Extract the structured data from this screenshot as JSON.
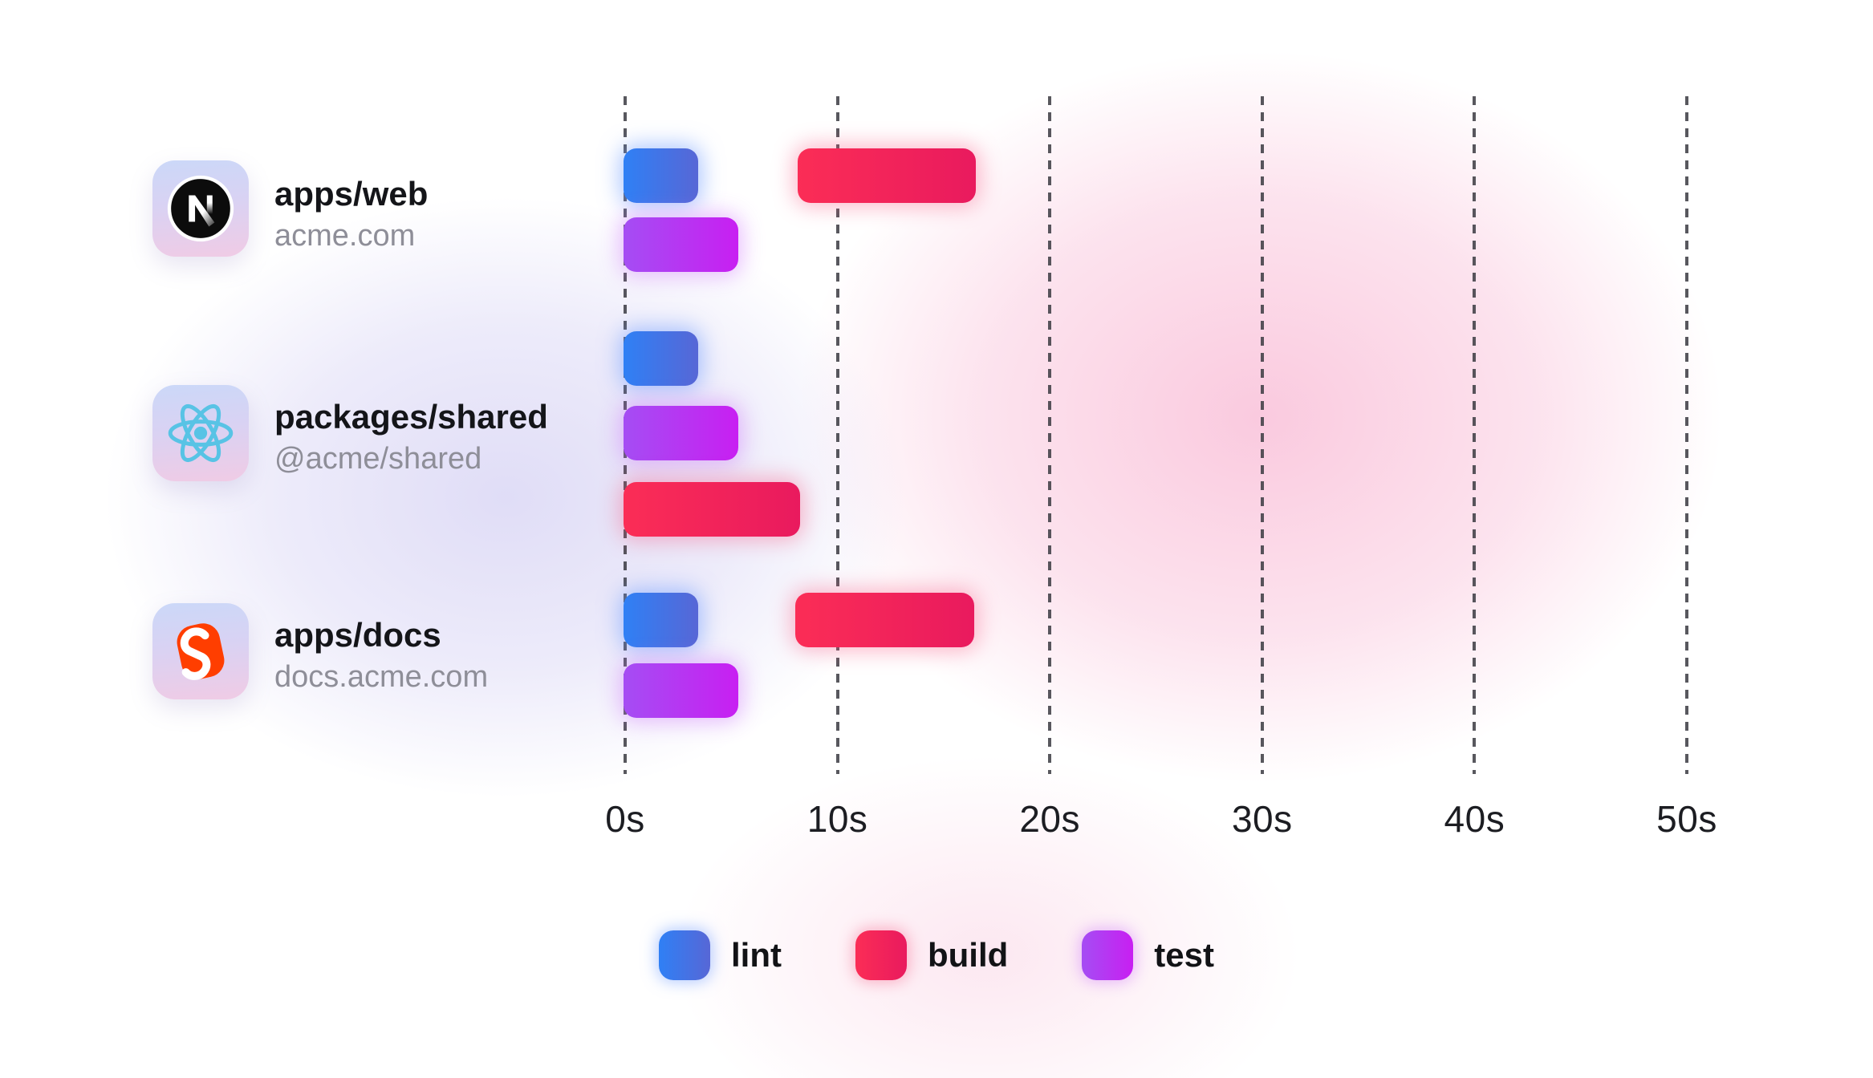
{
  "chart_data": {
    "type": "gantt",
    "unit": "seconds",
    "axis": {
      "ticks": [
        "0s",
        "10s",
        "20s",
        "30s",
        "40s",
        "50s"
      ],
      "values": [
        0,
        10,
        20,
        30,
        40,
        50
      ],
      "min": 0,
      "max": 50,
      "gridline_style": "dashed-vertical"
    },
    "rows": [
      {
        "label": "apps/web",
        "sublabel": "acme.com",
        "icon": "nextjs-logo",
        "tasks": [
          {
            "name": "lint",
            "start": 0,
            "end": 3.5,
            "line": 0
          },
          {
            "name": "build",
            "start": 8.2,
            "end": 16.6,
            "line": 0
          },
          {
            "name": "test",
            "start": 0,
            "end": 5.4,
            "line": 1
          }
        ]
      },
      {
        "label": "packages/shared",
        "sublabel": "@acme/shared",
        "icon": "react-logo",
        "tasks": [
          {
            "name": "lint",
            "start": 0,
            "end": 3.5,
            "line": 0
          },
          {
            "name": "test",
            "start": 0,
            "end": 5.4,
            "line": 1
          },
          {
            "name": "build",
            "start": 0,
            "end": 8.3,
            "line": 2
          }
        ]
      },
      {
        "label": "apps/docs",
        "sublabel": "docs.acme.com",
        "icon": "svelte-logo",
        "tasks": [
          {
            "name": "lint",
            "start": 0,
            "end": 3.5,
            "line": 0
          },
          {
            "name": "build",
            "start": 8.1,
            "end": 16.5,
            "line": 0
          },
          {
            "name": "test",
            "start": 0,
            "end": 5.4,
            "line": 1
          }
        ]
      }
    ],
    "legend": [
      {
        "label": "lint"
      },
      {
        "label": "build"
      },
      {
        "label": "test"
      }
    ]
  },
  "colors": {
    "lint_from": "#2f80f5",
    "lint_to": "#5767d6",
    "build_from": "#fb2d56",
    "build_to": "#e91a5e",
    "test_from": "#a54df3",
    "test_to": "#c81ff2",
    "gridline": "#3a3a41",
    "title_text": "#141519",
    "subtitle_text": "#8e8e98",
    "nextjs_black": "#0c0c0c",
    "react_cyan": "#58c3e5",
    "svelte_orange": "#ff3e00"
  }
}
